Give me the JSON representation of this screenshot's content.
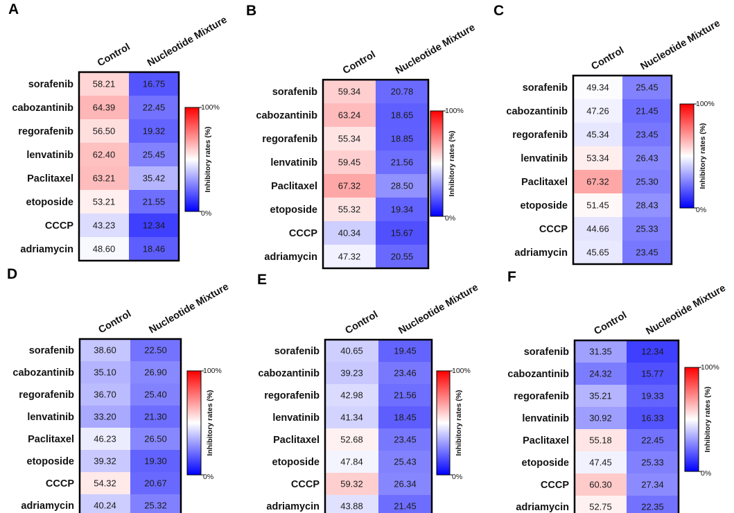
{
  "chart_data": [
    {
      "type": "heatmap",
      "panel": "A",
      "rows": [
        "sorafenib",
        "cabozantinib",
        "regorafenib",
        "lenvatinib",
        "Paclitaxel",
        "etoposide",
        "CCCP",
        "adriamycin"
      ],
      "columns": [
        "Control",
        "Nucleotide Mixture"
      ],
      "values": [
        [
          58.21,
          16.75
        ],
        [
          64.39,
          22.45
        ],
        [
          56.5,
          19.32
        ],
        [
          62.4,
          25.45
        ],
        [
          63.21,
          35.42
        ],
        [
          53.21,
          21.55
        ],
        [
          43.23,
          12.34
        ],
        [
          48.6,
          18.46
        ]
      ],
      "labels": [
        [
          "58.21",
          "16.75"
        ],
        [
          "64.39",
          "22.45"
        ],
        [
          "56.50",
          "19.32"
        ],
        [
          "62.40",
          "25.45"
        ],
        [
          "63.21",
          "35.42"
        ],
        [
          "53.21",
          "21.55"
        ],
        [
          "43.23",
          "12.34"
        ],
        [
          "48.60",
          "18.46"
        ]
      ],
      "colorbar": {
        "min_label": "0%",
        "max_label": "100%",
        "title": "Inhibitory rates (%)",
        "range": [
          0,
          100
        ],
        "colors": {
          "low": "#0000ff",
          "mid": "#ffffff",
          "high": "#ff0000"
        }
      }
    },
    {
      "type": "heatmap",
      "panel": "B",
      "rows": [
        "sorafenib",
        "cabozantinib",
        "regorafenib",
        "lenvatinib",
        "Paclitaxel",
        "etoposide",
        "CCCP",
        "adriamycin"
      ],
      "columns": [
        "Control",
        "Nucleotide Mixture"
      ],
      "values": [
        [
          59.34,
          20.78
        ],
        [
          63.24,
          18.65
        ],
        [
          55.34,
          18.85
        ],
        [
          59.45,
          21.56
        ],
        [
          67.32,
          28.5
        ],
        [
          55.32,
          19.34
        ],
        [
          40.34,
          15.67
        ],
        [
          47.32,
          20.55
        ]
      ],
      "labels": [
        [
          "59.34",
          "20.78"
        ],
        [
          "63.24",
          "18.65"
        ],
        [
          "55.34",
          "18.85"
        ],
        [
          "59.45",
          "21.56"
        ],
        [
          "67.32",
          "28.50"
        ],
        [
          "55.32",
          "19.34"
        ],
        [
          "40.34",
          "15.67"
        ],
        [
          "47.32",
          "20.55"
        ]
      ],
      "colorbar": {
        "min_label": "0%",
        "max_label": "100%",
        "title": "Inhibitory rates (%)",
        "range": [
          0,
          100
        ],
        "colors": {
          "low": "#0000ff",
          "mid": "#ffffff",
          "high": "#ff0000"
        }
      }
    },
    {
      "type": "heatmap",
      "panel": "C",
      "rows": [
        "sorafenib",
        "cabozantinib",
        "regorafenib",
        "lenvatinib",
        "Paclitaxel",
        "etoposide",
        "CCCP",
        "adriamycin"
      ],
      "columns": [
        "Control",
        "Nucleotide Mixture"
      ],
      "values": [
        [
          49.34,
          25.45
        ],
        [
          47.26,
          21.45
        ],
        [
          45.34,
          23.45
        ],
        [
          53.34,
          26.43
        ],
        [
          67.32,
          25.3
        ],
        [
          51.45,
          28.43
        ],
        [
          44.66,
          25.33
        ],
        [
          45.65,
          23.45
        ]
      ],
      "labels": [
        [
          "49.34",
          "25.45"
        ],
        [
          "47.26",
          "21.45"
        ],
        [
          "45.34",
          "23.45"
        ],
        [
          "53.34",
          "26.43"
        ],
        [
          "67.32",
          "25.30"
        ],
        [
          "51.45",
          "28.43"
        ],
        [
          "44.66",
          "25.33"
        ],
        [
          "45.65",
          "23.45"
        ]
      ],
      "colorbar": {
        "min_label": "0%",
        "max_label": "100%",
        "title": "Inhibitory rates (%)",
        "range": [
          0,
          100
        ],
        "colors": {
          "low": "#0000ff",
          "mid": "#ffffff",
          "high": "#ff0000"
        }
      }
    },
    {
      "type": "heatmap",
      "panel": "D",
      "rows": [
        "sorafenib",
        "cabozantinib",
        "regorafenib",
        "lenvatinib",
        "Paclitaxel",
        "etoposide",
        "CCCP",
        "adriamycin"
      ],
      "columns": [
        "Control",
        "Nucleotide Mixture"
      ],
      "values": [
        [
          38.6,
          22.5
        ],
        [
          35.1,
          26.9
        ],
        [
          36.7,
          25.4
        ],
        [
          33.2,
          21.3
        ],
        [
          46.23,
          26.5
        ],
        [
          39.32,
          19.3
        ],
        [
          54.32,
          20.67
        ],
        [
          40.24,
          25.32
        ]
      ],
      "labels": [
        [
          "38.60",
          "22.50"
        ],
        [
          "35.10",
          "26.90"
        ],
        [
          "36.70",
          "25.40"
        ],
        [
          "33.20",
          "21.30"
        ],
        [
          "46.23",
          "26.50"
        ],
        [
          "39.32",
          "19.30"
        ],
        [
          "54.32",
          "20.67"
        ],
        [
          "40.24",
          "25.32"
        ]
      ],
      "colorbar": {
        "min_label": "0%",
        "max_label": "100%",
        "title": "Inhibitory rates (%)",
        "range": [
          0,
          100
        ],
        "colors": {
          "low": "#0000ff",
          "mid": "#ffffff",
          "high": "#ff0000"
        }
      }
    },
    {
      "type": "heatmap",
      "panel": "E",
      "rows": [
        "sorafenib",
        "cabozantinib",
        "regorafenib",
        "lenvatinib",
        "Paclitaxel",
        "etoposide",
        "CCCP",
        "adriamycin"
      ],
      "columns": [
        "Control",
        "Nucleotide Mixture"
      ],
      "values": [
        [
          40.65,
          19.45
        ],
        [
          39.23,
          23.46
        ],
        [
          42.98,
          21.56
        ],
        [
          41.34,
          18.45
        ],
        [
          52.68,
          23.45
        ],
        [
          47.84,
          25.43
        ],
        [
          59.32,
          26.34
        ],
        [
          43.88,
          21.45
        ]
      ],
      "labels": [
        [
          "40.65",
          "19.45"
        ],
        [
          "39.23",
          "23.46"
        ],
        [
          "42.98",
          "21.56"
        ],
        [
          "41.34",
          "18.45"
        ],
        [
          "52.68",
          "23.45"
        ],
        [
          "47.84",
          "25.43"
        ],
        [
          "59.32",
          "26.34"
        ],
        [
          "43.88",
          "21.45"
        ]
      ],
      "colorbar": {
        "min_label": "0%",
        "max_label": "100%",
        "title": "Inhibitory rates (%)",
        "range": [
          0,
          100
        ],
        "colors": {
          "low": "#0000ff",
          "mid": "#ffffff",
          "high": "#ff0000"
        }
      }
    },
    {
      "type": "heatmap",
      "panel": "F",
      "rows": [
        "sorafenib",
        "cabozantinib",
        "regorafenib",
        "lenvatinib",
        "Paclitaxel",
        "etoposide",
        "CCCP",
        "adriamycin"
      ],
      "columns": [
        "Control",
        "Nucleotide Mixture"
      ],
      "values": [
        [
          31.35,
          12.34
        ],
        [
          24.32,
          15.77
        ],
        [
          35.21,
          19.33
        ],
        [
          30.92,
          16.33
        ],
        [
          55.18,
          22.45
        ],
        [
          47.45,
          25.33
        ],
        [
          60.3,
          27.34
        ],
        [
          52.75,
          22.35
        ]
      ],
      "labels": [
        [
          "31.35",
          "12.34"
        ],
        [
          "24.32",
          "15.77"
        ],
        [
          "35.21",
          "19.33"
        ],
        [
          "30.92",
          "16.33"
        ],
        [
          "55.18",
          "22.45"
        ],
        [
          "47.45",
          "25.33"
        ],
        [
          "60.30",
          "27.34"
        ],
        [
          "52.75",
          "22.35"
        ]
      ],
      "colorbar": {
        "min_label": "0%",
        "max_label": "100%",
        "title": "Inhibitory rates (%)",
        "range": [
          0,
          100
        ],
        "colors": {
          "low": "#0000ff",
          "mid": "#ffffff",
          "high": "#ff0000"
        }
      }
    }
  ]
}
